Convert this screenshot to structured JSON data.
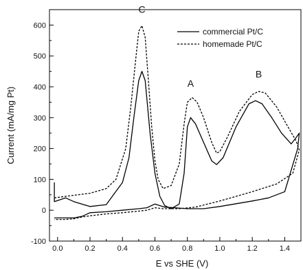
{
  "chart_data": {
    "type": "line",
    "title": "",
    "xlabel": "E vs SHE (V)",
    "ylabel": "Current (mA/mg Pt)",
    "xlim": [
      -0.05,
      1.5
    ],
    "ylim": [
      -100,
      650
    ],
    "xticks": [
      "0.0",
      "0.2",
      "0.4",
      "0.6",
      "0.8",
      "1.0",
      "1.2",
      "1.4"
    ],
    "yticks": [
      "-100",
      "0",
      "100",
      "200",
      "300",
      "400",
      "500",
      "600"
    ],
    "legend_position": "top-right",
    "series": [
      {
        "name": "commercial Pt/C",
        "style": "solid",
        "color": "#000000",
        "points": [
          [
            -0.02,
            90
          ],
          [
            -0.02,
            28
          ],
          [
            0.05,
            40
          ],
          [
            0.1,
            28
          ],
          [
            0.2,
            12
          ],
          [
            0.3,
            18
          ],
          [
            0.4,
            90
          ],
          [
            0.44,
            170
          ],
          [
            0.47,
            300
          ],
          [
            0.5,
            420
          ],
          [
            0.52,
            450
          ],
          [
            0.54,
            420
          ],
          [
            0.57,
            250
          ],
          [
            0.6,
            120
          ],
          [
            0.63,
            45
          ],
          [
            0.66,
            15
          ],
          [
            0.7,
            5
          ],
          [
            0.75,
            20
          ],
          [
            0.78,
            120
          ],
          [
            0.8,
            270
          ],
          [
            0.82,
            300
          ],
          [
            0.85,
            280
          ],
          [
            0.9,
            220
          ],
          [
            0.95,
            160
          ],
          [
            0.98,
            148
          ],
          [
            1.02,
            170
          ],
          [
            1.1,
            270
          ],
          [
            1.18,
            345
          ],
          [
            1.22,
            355
          ],
          [
            1.26,
            345
          ],
          [
            1.32,
            300
          ],
          [
            1.38,
            250
          ],
          [
            1.44,
            215
          ],
          [
            1.47,
            235
          ],
          [
            1.49,
            250
          ],
          [
            1.48,
            200
          ],
          [
            1.4,
            60
          ],
          [
            1.3,
            40
          ],
          [
            1.2,
            30
          ],
          [
            1.0,
            12
          ],
          [
            0.9,
            5
          ],
          [
            0.8,
            5
          ],
          [
            0.72,
            8
          ],
          [
            0.66,
            10
          ],
          [
            0.6,
            20
          ],
          [
            0.55,
            8
          ],
          [
            0.5,
            5
          ],
          [
            0.4,
            0
          ],
          [
            0.3,
            -5
          ],
          [
            0.2,
            -8
          ],
          [
            0.15,
            -20
          ],
          [
            0.1,
            -25
          ],
          [
            0.05,
            -25
          ],
          [
            0.0,
            -25
          ],
          [
            -0.02,
            -25
          ]
        ]
      },
      {
        "name": "homemade Pt/C",
        "style": "dashed",
        "color": "#000000",
        "points": [
          [
            -0.02,
            40
          ],
          [
            0.05,
            45
          ],
          [
            0.2,
            55
          ],
          [
            0.3,
            70
          ],
          [
            0.36,
            100
          ],
          [
            0.42,
            200
          ],
          [
            0.45,
            330
          ],
          [
            0.48,
            480
          ],
          [
            0.5,
            580
          ],
          [
            0.52,
            598
          ],
          [
            0.54,
            560
          ],
          [
            0.56,
            420
          ],
          [
            0.58,
            270
          ],
          [
            0.6,
            160
          ],
          [
            0.62,
            100
          ],
          [
            0.65,
            70
          ],
          [
            0.7,
            80
          ],
          [
            0.75,
            150
          ],
          [
            0.78,
            280
          ],
          [
            0.8,
            350
          ],
          [
            0.83,
            365
          ],
          [
            0.86,
            350
          ],
          [
            0.9,
            300
          ],
          [
            0.95,
            220
          ],
          [
            0.98,
            185
          ],
          [
            1.0,
            190
          ],
          [
            1.05,
            240
          ],
          [
            1.12,
            320
          ],
          [
            1.2,
            375
          ],
          [
            1.24,
            385
          ],
          [
            1.28,
            380
          ],
          [
            1.35,
            335
          ],
          [
            1.42,
            270
          ],
          [
            1.47,
            225
          ],
          [
            1.49,
            195
          ],
          [
            1.45,
            120
          ],
          [
            1.35,
            85
          ],
          [
            1.2,
            60
          ],
          [
            1.0,
            30
          ],
          [
            0.85,
            10
          ],
          [
            0.75,
            5
          ],
          [
            0.65,
            5
          ],
          [
            0.6,
            8
          ],
          [
            0.55,
            0
          ],
          [
            0.5,
            -3
          ],
          [
            0.4,
            -8
          ],
          [
            0.3,
            -12
          ],
          [
            0.2,
            -18
          ],
          [
            0.15,
            -22
          ],
          [
            0.1,
            -28
          ],
          [
            0.05,
            -30
          ],
          [
            0.0,
            -30
          ],
          [
            -0.02,
            -30
          ]
        ]
      }
    ],
    "annotations": [
      {
        "text": "C",
        "x": 0.52,
        "y": 640
      },
      {
        "text": "A",
        "x": 0.82,
        "y": 400
      },
      {
        "text": "B",
        "x": 1.24,
        "y": 430
      }
    ]
  }
}
